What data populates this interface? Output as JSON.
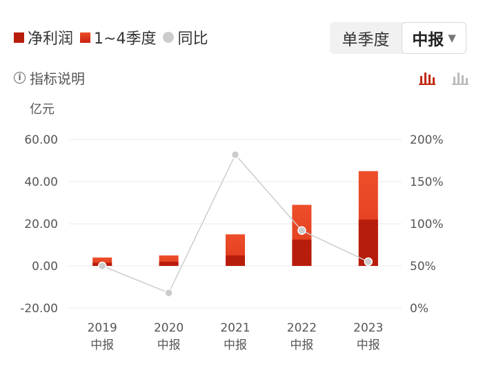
{
  "legend": {
    "net_profit": "净利润",
    "quarters": "1~4季度",
    "yoy": "同比"
  },
  "period_toggle": {
    "single_label": "单季度",
    "selected_label": "中报",
    "caret": "▼"
  },
  "indicator_link": {
    "icon_text": "i",
    "label": "指标说明"
  },
  "chart_type_icons": [
    "bar-chart-icon-active",
    "bar-chart-icon"
  ],
  "colors": {
    "net_profit": "#b81d0c",
    "quarters": "#e8411f",
    "yoy": "#cccccc",
    "active_icon": "#c0280f",
    "inactive_icon": "#bbbbbb"
  },
  "chart_data": {
    "type": "bar",
    "title": "",
    "left_axis_unit": "亿元",
    "categories": [
      "2019\n中报",
      "2020\n中报",
      "2021\n中报",
      "2022\n中报",
      "2023\n中报"
    ],
    "series": [
      {
        "name": "净利润",
        "kind": "bar",
        "values": [
          1.5,
          2.0,
          5.0,
          12.5,
          22.0
        ]
      },
      {
        "name": "1~4季度",
        "kind": "bar",
        "values": [
          4.0,
          5.0,
          15.0,
          29.0,
          45.0
        ]
      },
      {
        "name": "同比",
        "kind": "line",
        "axis": "right",
        "values": [
          50,
          18,
          182,
          92,
          55
        ]
      }
    ],
    "y_left": {
      "lim": [
        -20,
        60
      ],
      "ticks": [
        "-20.00",
        "0.00",
        "20.00",
        "40.00",
        "60.00"
      ]
    },
    "y_right": {
      "lim": [
        0,
        200
      ],
      "ticks": [
        "0%",
        "50%",
        "100%",
        "150%",
        "200%"
      ]
    },
    "grid": true,
    "legend_position": "top-left"
  }
}
